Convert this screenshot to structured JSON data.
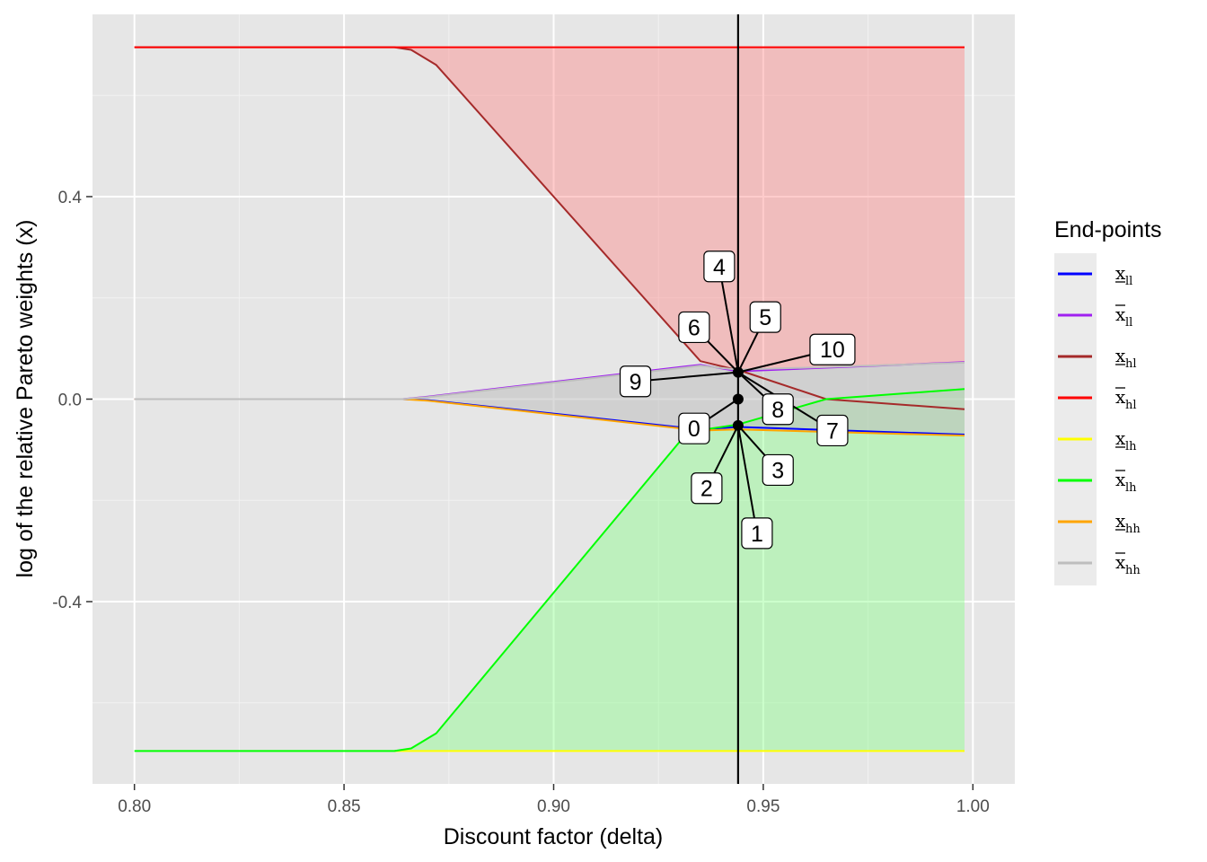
{
  "chart_data": {
    "type": "line",
    "title": "",
    "xlabel": "Discount factor (delta)",
    "ylabel": "log of the relative Pareto weights (x)",
    "xlim": [
      0.79,
      1.01
    ],
    "ylim": [
      -0.76,
      0.76
    ],
    "x_ticks": [
      0.8,
      0.85,
      0.9,
      0.95,
      1.0
    ],
    "x_tick_labels": [
      "0.80",
      "0.85",
      "0.90",
      "0.95",
      "1.00"
    ],
    "y_ticks": [
      -0.4,
      0.0,
      0.4
    ],
    "y_tick_labels": [
      "-0.4",
      "0.0",
      "0.4"
    ],
    "grid": true,
    "legend_position": "right",
    "legend_title": "End-points",
    "vertical_line_x": 0.944,
    "series": [
      {
        "name": "x_ll (lower)",
        "symbol": "x",
        "bar": "under",
        "sub": "ll",
        "color": "#0000ff",
        "x": [
          0.8,
          0.864,
          0.87,
          0.935,
          0.944,
          0.998
        ],
        "y": [
          0.0,
          0.0,
          -0.002,
          -0.06,
          -0.055,
          -0.07
        ]
      },
      {
        "name": "x_ll (upper)",
        "symbol": "x",
        "bar": "over",
        "sub": "ll",
        "color": "#a020f0",
        "x": [
          0.8,
          0.864,
          0.87,
          0.935,
          0.944,
          0.998
        ],
        "y": [
          0.0,
          0.0,
          0.005,
          0.068,
          0.055,
          0.073
        ]
      },
      {
        "name": "x_hl (lower)",
        "symbol": "x",
        "bar": "under",
        "sub": "hl",
        "color": "#a52a2a",
        "x": [
          0.8,
          0.862,
          0.866,
          0.872,
          0.935,
          0.945,
          0.965,
          0.998
        ],
        "y": [
          0.695,
          0.695,
          0.69,
          0.66,
          0.075,
          0.055,
          0.0,
          -0.02
        ]
      },
      {
        "name": "x_hl (upper)",
        "symbol": "x",
        "bar": "over",
        "sub": "hl",
        "color": "#ff0000",
        "x": [
          0.8,
          0.998
        ],
        "y": [
          0.695,
          0.695
        ]
      },
      {
        "name": "x_lh (lower)",
        "symbol": "x",
        "bar": "under",
        "sub": "lh",
        "color": "#ffff00",
        "x": [
          0.862,
          0.998
        ],
        "y": [
          -0.695,
          -0.695
        ]
      },
      {
        "name": "x_lh (upper)",
        "symbol": "x",
        "bar": "over",
        "sub": "lh",
        "color": "#00ff00",
        "x": [
          0.8,
          0.862,
          0.866,
          0.872,
          0.932,
          0.944,
          0.965,
          0.998
        ],
        "y": [
          -0.695,
          -0.695,
          -0.69,
          -0.66,
          -0.065,
          -0.05,
          0.0,
          0.02
        ]
      },
      {
        "name": "x_hh (lower)",
        "symbol": "x",
        "bar": "under",
        "sub": "hh",
        "color": "#ffa500",
        "x": [
          0.8,
          0.864,
          0.87,
          0.935,
          0.944,
          0.998
        ],
        "y": [
          0.0,
          0.0,
          -0.003,
          -0.062,
          -0.06,
          -0.072
        ]
      },
      {
        "name": "x_hh (upper)",
        "symbol": "x",
        "bar": "over",
        "sub": "hh",
        "color": "#bebebe",
        "x": [
          0.8,
          0.864,
          0.87,
          0.935,
          0.944,
          0.998
        ],
        "y": [
          0.0,
          0.0,
          0.004,
          0.066,
          0.058,
          0.072
        ]
      }
    ],
    "bands": [
      {
        "fill": "#ff7f7f",
        "opacity": 0.4,
        "x": [
          0.862,
          0.866,
          0.872,
          0.935,
          0.945,
          0.998
        ],
        "upper": [
          0.695,
          0.695,
          0.695,
          0.695,
          0.695,
          0.695
        ],
        "lower": [
          0.695,
          0.69,
          0.66,
          0.075,
          0.055,
          0.072
        ]
      },
      {
        "fill": "#7fff7f",
        "opacity": 0.4,
        "x": [
          0.862,
          0.866,
          0.872,
          0.932,
          0.944,
          0.965,
          0.998
        ],
        "upper": [
          -0.695,
          -0.69,
          -0.66,
          -0.065,
          -0.05,
          0.0,
          0.02
        ],
        "lower": [
          -0.695,
          -0.695,
          -0.695,
          -0.695,
          -0.695,
          -0.695,
          -0.695
        ]
      },
      {
        "fill": "#bebebe",
        "opacity": 0.55,
        "x": [
          0.864,
          0.87,
          0.935,
          0.944,
          0.998
        ],
        "upper": [
          0.0,
          0.004,
          0.066,
          0.058,
          0.072
        ],
        "lower": [
          0.0,
          -0.003,
          -0.062,
          -0.06,
          -0.072
        ]
      }
    ],
    "points": [
      {
        "x": 0.944,
        "y": 0.053
      },
      {
        "x": 0.944,
        "y": 0.0
      },
      {
        "x": 0.944,
        "y": -0.052
      }
    ],
    "callouts": [
      {
        "label": "0",
        "lx": 0.9335,
        "ly": -0.058,
        "px": 0.944,
        "py": 0.0
      },
      {
        "label": "1",
        "lx": 0.9485,
        "ly": -0.265,
        "px": 0.944,
        "py": -0.052
      },
      {
        "label": "2",
        "lx": 0.9365,
        "ly": -0.176,
        "px": 0.944,
        "py": -0.052
      },
      {
        "label": "3",
        "lx": 0.9535,
        "ly": -0.14,
        "px": 0.944,
        "py": -0.052
      },
      {
        "label": "4",
        "lx": 0.9395,
        "ly": 0.262,
        "px": 0.944,
        "py": 0.053
      },
      {
        "label": "5",
        "lx": 0.9505,
        "ly": 0.162,
        "px": 0.944,
        "py": 0.053
      },
      {
        "label": "6",
        "lx": 0.9335,
        "ly": 0.142,
        "px": 0.944,
        "py": 0.053
      },
      {
        "label": "7",
        "lx": 0.9665,
        "ly": -0.062,
        "px": 0.944,
        "py": 0.053
      },
      {
        "label": "8",
        "lx": 0.9535,
        "ly": -0.02,
        "px": 0.944,
        "py": 0.053
      },
      {
        "label": "9",
        "lx": 0.9195,
        "ly": 0.035,
        "px": 0.944,
        "py": 0.053
      },
      {
        "label": "10",
        "lx": 0.9665,
        "ly": 0.098,
        "px": 0.944,
        "py": 0.053
      }
    ]
  }
}
